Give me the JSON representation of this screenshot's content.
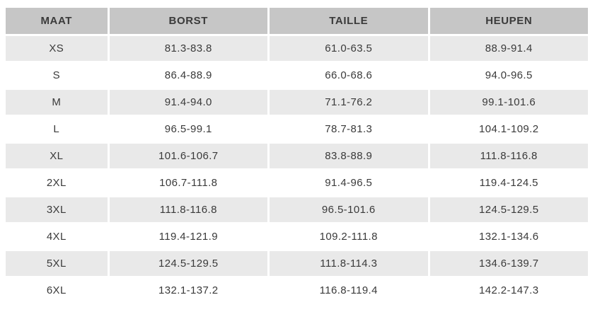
{
  "chart_data": {
    "type": "table",
    "columns": [
      "MAAT",
      "BORST",
      "TAILLE",
      "HEUPEN"
    ],
    "rows": [
      [
        "XS",
        "81.3-83.8",
        "61.0-63.5",
        "88.9-91.4"
      ],
      [
        "S",
        "86.4-88.9",
        "66.0-68.6",
        "94.0-96.5"
      ],
      [
        "M",
        "91.4-94.0",
        "71.1-76.2",
        "99.1-101.6"
      ],
      [
        "L",
        "96.5-99.1",
        "78.7-81.3",
        "104.1-109.2"
      ],
      [
        "XL",
        "101.6-106.7",
        "83.8-88.9",
        "111.8-116.8"
      ],
      [
        "2XL",
        "106.7-111.8",
        "91.4-96.5",
        "119.4-124.5"
      ],
      [
        "3XL",
        "111.8-116.8",
        "96.5-101.6",
        "124.5-129.5"
      ],
      [
        "4XL",
        "119.4-121.9",
        "109.2-111.8",
        "132.1-134.6"
      ],
      [
        "5XL",
        "124.5-129.5",
        "111.8-114.3",
        "134.6-139.7"
      ],
      [
        "6XL",
        "132.1-137.2",
        "116.8-119.4",
        "142.2-147.3"
      ]
    ],
    "layout_hints": {
      "header_row": true,
      "zebra_striping": "odd-rows-gray",
      "cell_alignment": "center"
    }
  },
  "colors": {
    "header_bg": "#c6c6c6",
    "row_alt_bg": "#e9e9e9",
    "text_color": "#3a3a3a",
    "page_bg": "#ffffff"
  }
}
